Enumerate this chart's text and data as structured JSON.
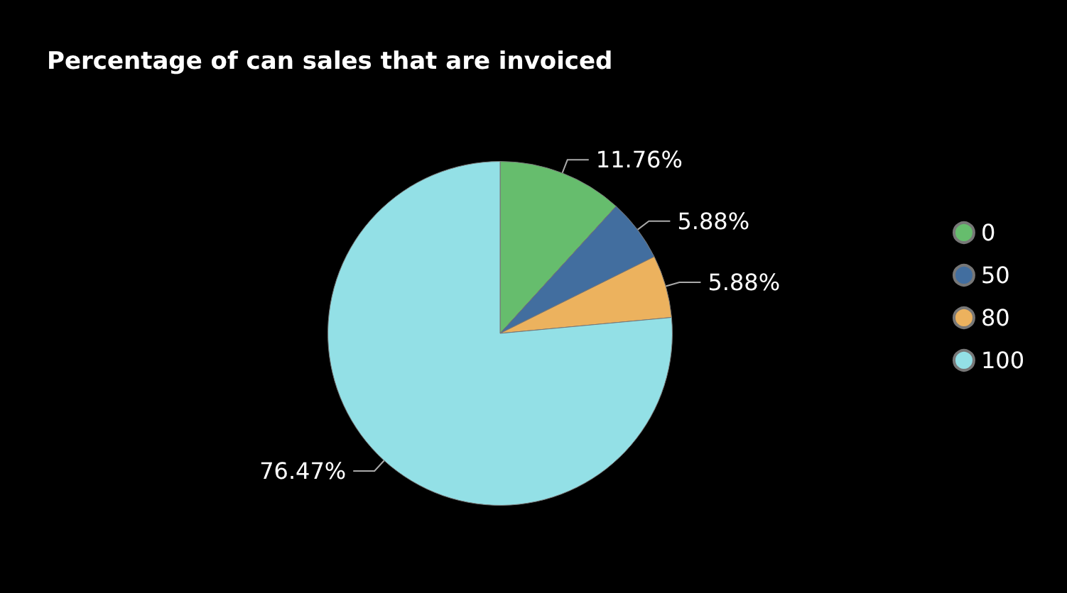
{
  "chart_data": {
    "type": "pie",
    "title": "Percentage of can sales that are invoiced",
    "categories": [
      "0",
      "50",
      "80",
      "100"
    ],
    "values": [
      11.76,
      5.88,
      5.88,
      76.47
    ],
    "value_labels": [
      "11.76%",
      "5.88%",
      "5.88%",
      "76.47%"
    ],
    "colors": [
      "#66bd6d",
      "#426e9f",
      "#ecb25e",
      "#93e0e6"
    ],
    "legend": "right"
  }
}
